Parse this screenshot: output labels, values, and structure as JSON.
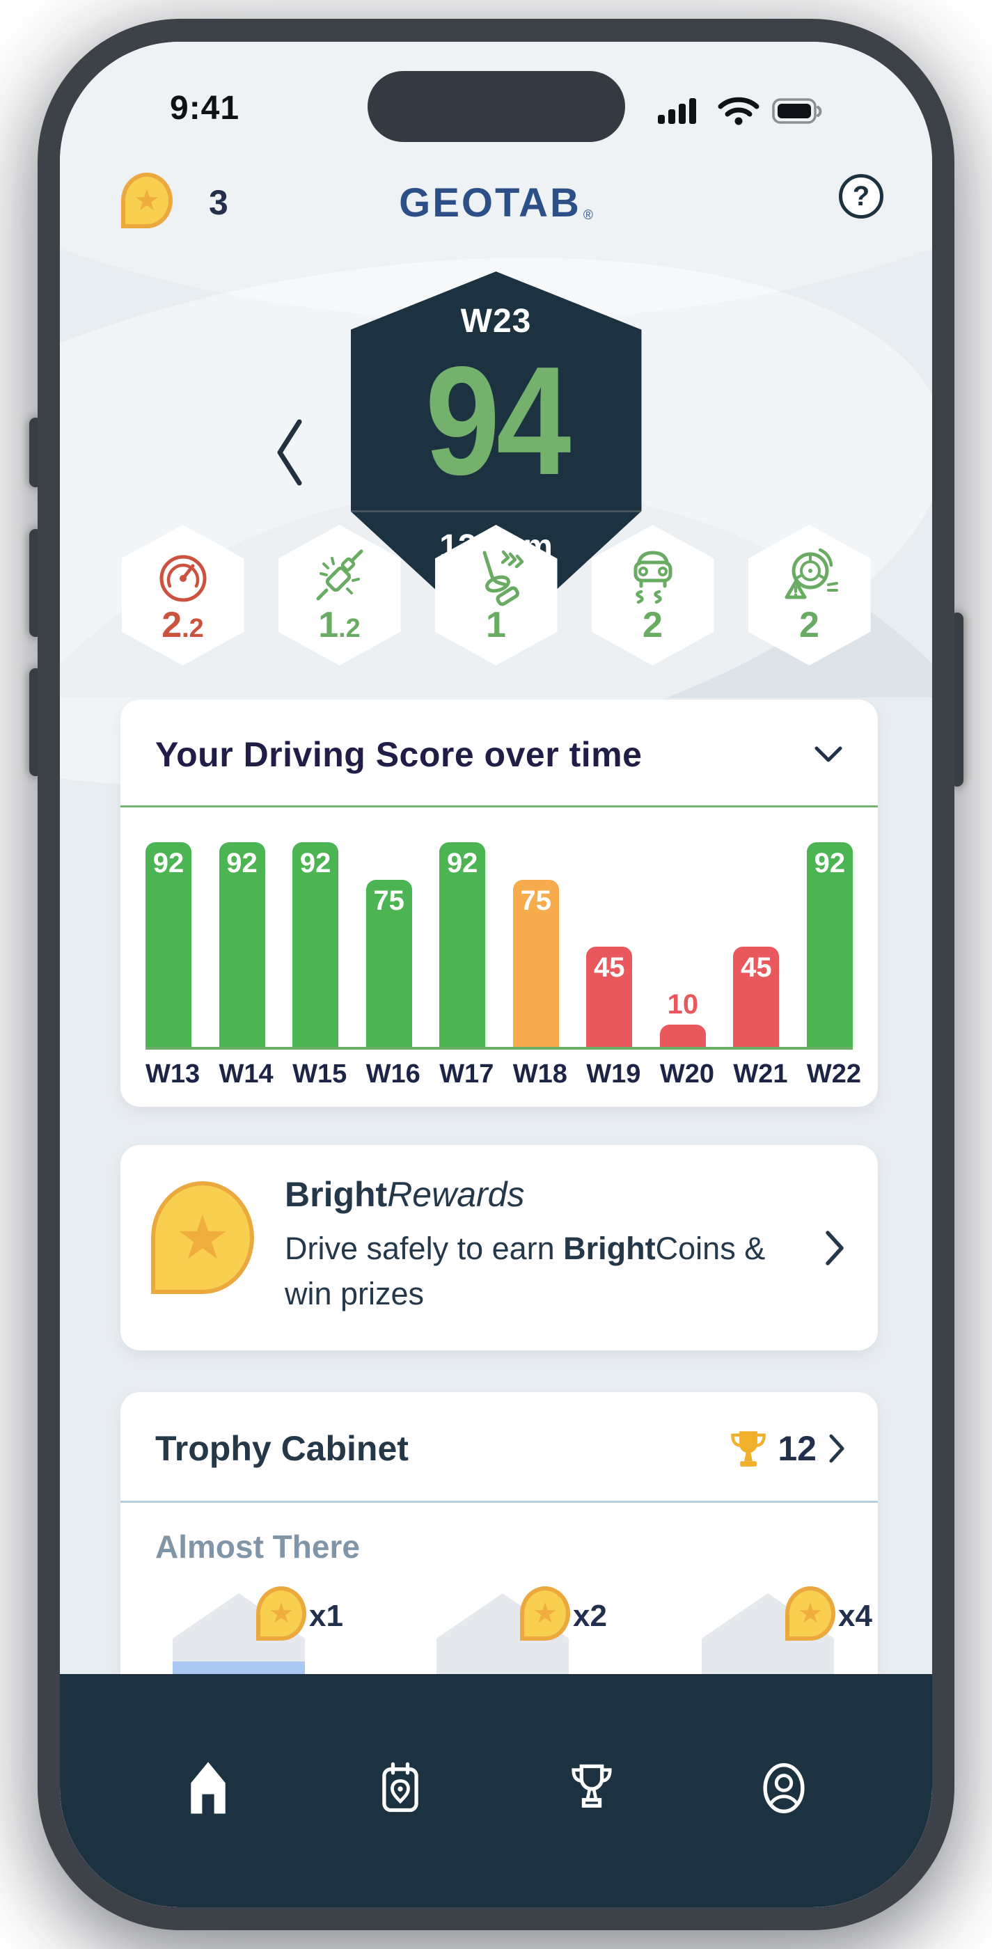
{
  "status_bar": {
    "time": "9:41"
  },
  "header": {
    "coin_count": "3",
    "logo_text": "GEOTAB",
    "registered_mark": "®",
    "help_label": "?"
  },
  "score_badge": {
    "week_label": "W23",
    "score": "94",
    "distance": "120 km"
  },
  "metrics": [
    {
      "name": "speeding",
      "value": "2.2",
      "color": "#cc5240"
    },
    {
      "name": "seatbelt",
      "value": "1.2",
      "color": "#6aab64"
    },
    {
      "name": "harsh-acceleration",
      "value": "1",
      "color": "#6aab64"
    },
    {
      "name": "harsh-cornering",
      "value": "2",
      "color": "#6aab64"
    },
    {
      "name": "harsh-braking",
      "value": "2",
      "color": "#6aab64"
    }
  ],
  "score_chart": {
    "title": "Your Driving Score over time",
    "chart_data": {
      "type": "bar",
      "categories": [
        "W13",
        "W14",
        "W15",
        "W16",
        "W17",
        "W18",
        "W19",
        "W20",
        "W21",
        "W22"
      ],
      "values": [
        92,
        92,
        92,
        75,
        92,
        75,
        45,
        10,
        45,
        92
      ],
      "bar_colors": [
        "#4db453",
        "#4db453",
        "#4db453",
        "#4db453",
        "#4db453",
        "#f6ac4d",
        "#e8585c",
        "#e8585c",
        "#e8585c",
        "#4db453"
      ],
      "ylim": [
        0,
        100
      ],
      "value_labels": true,
      "xlabel": "",
      "ylabel": "",
      "grid": false,
      "legend": false
    }
  },
  "rewards_card": {
    "title_bold": "Bright",
    "title_italic": "Rewards",
    "body_prefix": "Drive safely to earn ",
    "body_bold": "Bright",
    "body_suffix_line1": "Coins &",
    "body_line2": "win prizes"
  },
  "trophy_card": {
    "title": "Trophy Cabinet",
    "trophy_count": "12",
    "section_title": "Almost There",
    "badges": [
      {
        "multiplier": "x1",
        "progress": true
      },
      {
        "multiplier": "x2",
        "progress": false
      },
      {
        "multiplier": "x4",
        "progress": false
      }
    ]
  },
  "nav": {
    "items": [
      "home",
      "trips",
      "trophies",
      "profile"
    ],
    "active": "home"
  },
  "colors": {
    "navy": "#1d3240",
    "indigo": "#201d47",
    "slate": "#25384a",
    "score_green": "#73b16d",
    "bar_green": "#4db453",
    "bar_orange": "#f6ac4d",
    "bar_red": "#e8585c",
    "baseline_green": "#6cae67",
    "geotab_blue": "#2d4f87",
    "coin_yellow": "#f8cf4f",
    "coin_border": "#eaa83f",
    "trophy_gold": "#f0b02c",
    "progress_blue": "#a9c9f2",
    "screen_bg": "#e8edf1",
    "arc_bg": "#dce3e9"
  }
}
